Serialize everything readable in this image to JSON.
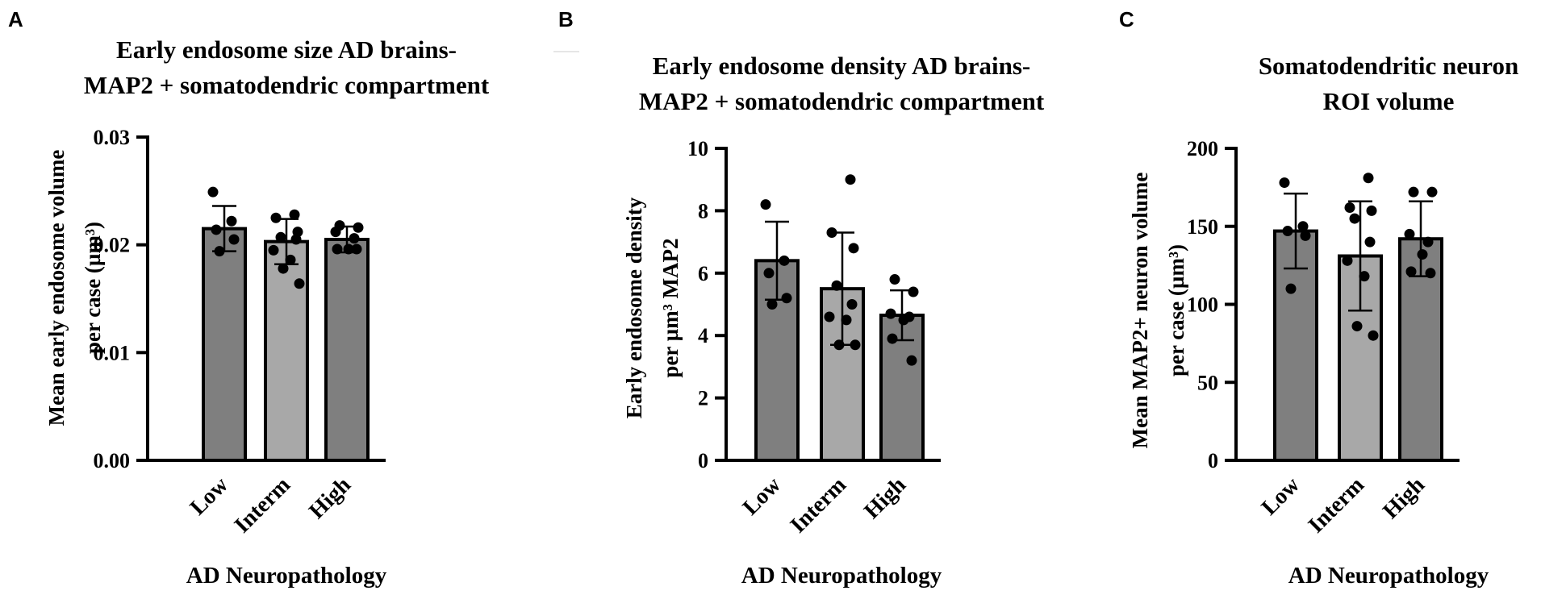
{
  "panels": [
    {
      "letter": "A",
      "title_lines": [
        "Early endosome size AD brains-",
        "MAP2 + somatodendric compartment"
      ],
      "ylabel_lines": [
        "Mean early endosome volume",
        "per case (µm³)"
      ],
      "xlabel": "AD Neuropathology"
    },
    {
      "letter": "B",
      "title_lines": [
        "Early endosome density AD brains-",
        "MAP2 + somatodendric compartment"
      ],
      "ylabel_lines": [
        "Early endosome density",
        "per µm³ MAP2"
      ],
      "xlabel": "AD Neuropathology"
    },
    {
      "letter": "C",
      "title_lines": [
        "Somatodendritic neuron",
        "ROI volume"
      ],
      "ylabel_lines": [
        "Mean MAP2+ neuron volume",
        "per case (µm³)"
      ],
      "xlabel": "AD Neuropathology"
    }
  ],
  "colors": {
    "dark_bar": "#7f7f7f",
    "light_bar": "#a8a8a8",
    "ink": "#000000"
  },
  "chart_data": [
    {
      "type": "bar",
      "title": "Early endosome size AD brains- MAP2 + somatodendric compartment",
      "xlabel": "AD Neuropathology",
      "ylabel": "Mean early endosome volume per case (µm³)",
      "categories": [
        "Low",
        "Interm",
        "High"
      ],
      "values": [
        0.0215,
        0.0203,
        0.0205
      ],
      "error": [
        0.0021,
        0.0021,
        0.0012
      ],
      "points": [
        [
          0.0249,
          0.0222,
          0.0214,
          0.0205,
          0.0194
        ],
        [
          0.0228,
          0.0225,
          0.0212,
          0.0207,
          0.0205,
          0.0195,
          0.0186,
          0.0178,
          0.0164
        ],
        [
          0.0218,
          0.0216,
          0.0212,
          0.0206,
          0.0196,
          0.0196,
          0.0196
        ]
      ],
      "ylim": [
        0,
        0.03
      ],
      "yticks": [
        0,
        0.01,
        0.02,
        0.03
      ],
      "ytick_labels": [
        "0.00",
        "0.01",
        "0.02",
        "0.03"
      ]
    },
    {
      "type": "bar",
      "title": "Early endosome density AD brains- MAP2 + somatodendric compartment",
      "xlabel": "AD Neuropathology",
      "ylabel": "Early endosome density per µm³ MAP2",
      "categories": [
        "Low",
        "Interm",
        "High"
      ],
      "values": [
        6.4,
        5.5,
        4.65
      ],
      "error": [
        1.25,
        1.8,
        0.8
      ],
      "points": [
        [
          8.2,
          6.4,
          6.0,
          5.2,
          5.0
        ],
        [
          9.0,
          7.3,
          6.8,
          5.6,
          5.0,
          4.6,
          4.5,
          3.7,
          3.7
        ],
        [
          5.8,
          5.4,
          4.7,
          4.6,
          4.5,
          3.9,
          3.2
        ]
      ],
      "ylim": [
        0,
        10
      ],
      "yticks": [
        0,
        2,
        4,
        6,
        8,
        10
      ],
      "ytick_labels": [
        "0",
        "2",
        "4",
        "6",
        "8",
        "10"
      ]
    },
    {
      "type": "bar",
      "title": "Somatodendritic neuron ROI volume",
      "xlabel": "AD Neuropathology",
      "ylabel": "Mean MAP2+ neuron volume per case (µm³)",
      "categories": [
        "Low",
        "Interm",
        "High"
      ],
      "values": [
        147,
        131,
        142
      ],
      "error": [
        24,
        35,
        24
      ],
      "points": [
        [
          178,
          150,
          147,
          144,
          110
        ],
        [
          181,
          162,
          160,
          155,
          140,
          128,
          118,
          86,
          80
        ],
        [
          172,
          172,
          145,
          140,
          132,
          121,
          120
        ]
      ],
      "ylim": [
        0,
        200
      ],
      "yticks": [
        0,
        50,
        100,
        150,
        200
      ],
      "ytick_labels": [
        "0",
        "50",
        "100",
        "150",
        "200"
      ]
    }
  ]
}
